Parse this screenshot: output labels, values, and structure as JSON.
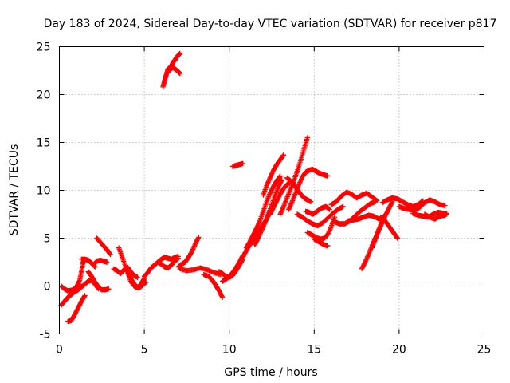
{
  "chart_data": {
    "type": "scatter",
    "title": "Day 183 of 2024, Sidereal Day-to-day VTEC variation (SDTVAR) for receiver p817",
    "xlabel": "GPS time / hours",
    "ylabel": "SDTVAR / TECUs",
    "xlim": [
      0,
      25
    ],
    "ylim": [
      -5,
      25
    ],
    "xticks": [
      0,
      5,
      10,
      15,
      20,
      25
    ],
    "yticks": [
      -5,
      0,
      5,
      10,
      15,
      20,
      25
    ],
    "grid": true,
    "marker": "plus",
    "color": "#ff0000",
    "series": [
      {
        "x": [
          0.1,
          0.3,
          0.5,
          0.7,
          0.9,
          1.1,
          1.3,
          1.5,
          1.7,
          1.9,
          2.1,
          2.3
        ],
        "y": [
          -2.0,
          -1.6,
          -1.2,
          -0.9,
          -0.6,
          -0.4,
          -0.1,
          0.2,
          0.5,
          0.6,
          0.2,
          -0.3
        ]
      },
      {
        "x": [
          0.1,
          0.3,
          0.5,
          0.8,
          1.0,
          1.2
        ],
        "y": [
          0.0,
          -0.3,
          -0.5,
          -0.4,
          -0.1,
          0.2
        ]
      },
      {
        "x": [
          0.5,
          0.7,
          0.9,
          1.1,
          1.3,
          1.5
        ],
        "y": [
          -3.7,
          -3.6,
          -3.0,
          -2.3,
          -1.6,
          -1.0
        ]
      },
      {
        "x": [
          0.6,
          0.8,
          1.0,
          1.2,
          1.3,
          1.4
        ],
        "y": [
          -1.0,
          -0.6,
          -0.1,
          0.6,
          1.5,
          2.5
        ]
      },
      {
        "x": [
          1.3,
          1.5,
          1.7,
          1.9,
          2.1
        ],
        "y": [
          2.8,
          2.8,
          2.7,
          2.4,
          2.0
        ]
      },
      {
        "x": [
          1.7,
          1.9,
          2.1,
          2.3,
          2.5,
          2.7,
          2.9
        ],
        "y": [
          1.5,
          1.0,
          0.4,
          -0.1,
          -0.4,
          -0.4,
          -0.3
        ]
      },
      {
        "x": [
          2.0,
          2.2,
          2.4,
          2.6,
          2.8
        ],
        "y": [
          2.2,
          2.6,
          2.7,
          2.6,
          2.5
        ]
      },
      {
        "x": [
          2.2,
          2.4,
          2.6,
          2.8,
          3.0
        ],
        "y": [
          5.0,
          4.6,
          4.2,
          3.8,
          3.3
        ]
      },
      {
        "x": [
          3.2,
          3.4,
          3.6,
          3.8,
          4.0,
          4.2,
          4.4,
          4.6
        ],
        "y": [
          1.8,
          1.6,
          1.3,
          1.7,
          2.0,
          1.5,
          1.1,
          0.9
        ]
      },
      {
        "x": [
          3.5,
          3.7,
          3.9,
          4.1,
          4.3,
          4.5,
          4.7,
          4.9,
          5.1
        ],
        "y": [
          4.0,
          3.0,
          2.0,
          1.2,
          0.5,
          0.0,
          -0.2,
          0.1,
          0.4
        ]
      },
      {
        "x": [
          4.0,
          4.2,
          4.4,
          4.6,
          4.8,
          5.0
        ],
        "y": [
          1.5,
          0.5,
          0.0,
          -0.2,
          0.2,
          0.8
        ]
      },
      {
        "x": [
          5.0,
          5.2,
          5.4,
          5.6,
          5.8,
          6.0,
          6.2,
          6.4,
          6.6,
          6.8,
          7.0
        ],
        "y": [
          1.0,
          1.4,
          1.9,
          2.2,
          2.5,
          2.8,
          3.0,
          2.9,
          2.8,
          3.0,
          3.1
        ]
      },
      {
        "x": [
          5.8,
          6.0,
          6.2,
          6.4,
          6.6,
          6.8,
          7.0
        ],
        "y": [
          2.5,
          2.3,
          2.0,
          1.9,
          2.2,
          2.6,
          2.9
        ]
      },
      {
        "x": [
          6.1,
          6.2,
          6.3,
          6.4,
          6.6,
          6.8,
          7.0,
          7.1
        ],
        "y": [
          20.8,
          21.5,
          22.1,
          22.7,
          22.9,
          22.7,
          22.4,
          22.2
        ]
      },
      {
        "x": [
          6.5,
          6.6,
          6.7,
          6.8,
          6.9,
          7.0,
          7.1
        ],
        "y": [
          22.5,
          23.0,
          23.4,
          23.6,
          23.9,
          24.1,
          24.3
        ]
      },
      {
        "x": [
          7.0,
          7.2,
          7.4,
          7.6,
          7.8,
          8.0,
          8.2
        ],
        "y": [
          2.0,
          2.3,
          2.5,
          3.0,
          3.6,
          4.4,
          5.1
        ]
      },
      {
        "x": [
          7.1,
          7.5,
          7.9,
          8.3,
          8.7,
          9.1,
          9.5
        ],
        "y": [
          1.8,
          1.6,
          1.7,
          1.9,
          1.7,
          1.4,
          1.2
        ]
      },
      {
        "x": [
          8.5,
          8.8,
          9.0,
          9.2,
          9.4,
          9.6
        ],
        "y": [
          1.2,
          1.0,
          0.6,
          0.1,
          -0.5,
          -1.2
        ]
      },
      {
        "x": [
          9.6,
          9.8,
          10.0,
          10.2,
          10.4,
          10.6,
          10.8
        ],
        "y": [
          0.5,
          0.7,
          1.0,
          1.4,
          1.9,
          2.5,
          3.2
        ]
      },
      {
        "x": [
          9.4,
          9.6,
          9.8,
          10.0,
          10.2,
          10.4,
          10.6,
          10.8
        ],
        "y": [
          1.5,
          1.3,
          1.0,
          0.9,
          1.1,
          1.6,
          2.2,
          2.8
        ]
      },
      {
        "x": [
          10.2,
          10.4,
          10.6,
          10.8
        ],
        "y": [
          12.5,
          12.6,
          12.7,
          12.8
        ]
      },
      {
        "x": [
          10.8,
          11.0,
          11.2,
          11.4,
          11.6,
          11.8,
          12.0,
          12.2,
          12.4
        ],
        "y": [
          3.0,
          3.7,
          4.3,
          4.8,
          5.3,
          5.8,
          6.4,
          7.0,
          7.8
        ]
      },
      {
        "x": [
          11.0,
          11.2,
          11.4,
          11.6,
          11.8,
          12.0,
          12.2,
          12.4,
          12.6,
          12.8,
          13.0
        ],
        "y": [
          4.0,
          4.6,
          5.3,
          6.0,
          6.8,
          7.8,
          8.8,
          9.7,
          10.4,
          11.0,
          11.5
        ]
      },
      {
        "x": [
          11.5,
          11.7,
          11.9,
          12.1,
          12.3,
          12.5,
          12.7,
          12.9,
          13.1
        ],
        "y": [
          4.3,
          5.0,
          5.8,
          6.6,
          7.5,
          8.5,
          9.5,
          10.4,
          11.1
        ]
      },
      {
        "x": [
          12.0,
          12.2,
          12.4,
          12.6,
          12.8,
          13.0,
          13.2
        ],
        "y": [
          9.5,
          10.5,
          11.3,
          12.1,
          12.7,
          13.2,
          13.7
        ]
      },
      {
        "x": [
          12.4,
          12.6,
          12.8,
          13.0,
          13.2,
          13.4,
          13.6,
          13.8
        ],
        "y": [
          7.5,
          8.2,
          8.9,
          9.6,
          10.2,
          10.6,
          10.9,
          10.8
        ]
      },
      {
        "x": [
          13.0,
          13.2,
          13.4,
          13.6,
          13.8,
          14.0,
          14.2,
          14.4,
          14.6
        ],
        "y": [
          7.5,
          8.3,
          9.2,
          10.1,
          11.0,
          12.0,
          13.1,
          14.3,
          15.5
        ]
      },
      {
        "x": [
          13.4,
          13.6,
          13.8,
          14.0,
          14.2,
          14.4,
          14.6,
          14.8
        ],
        "y": [
          11.3,
          11.0,
          10.6,
          10.1,
          9.6,
          9.2,
          9.0,
          8.8
        ]
      },
      {
        "x": [
          13.5,
          13.7,
          13.9,
          14.1,
          14.3,
          14.5,
          14.7,
          14.9,
          15.1,
          15.3,
          15.6,
          15.8
        ],
        "y": [
          8.0,
          8.8,
          9.7,
          10.6,
          11.4,
          11.9,
          12.1,
          12.2,
          12.0,
          11.8,
          11.6,
          11.5
        ]
      },
      {
        "x": [
          14.0,
          14.3,
          14.6,
          14.9,
          15.2,
          15.5,
          15.8,
          16.1,
          16.4,
          16.7
        ],
        "y": [
          7.5,
          7.2,
          6.8,
          6.5,
          6.3,
          6.6,
          7.1,
          7.6,
          8.0,
          8.3
        ]
      },
      {
        "x": [
          14.5,
          14.7,
          14.9,
          15.1,
          15.3,
          15.5,
          15.7,
          15.9
        ],
        "y": [
          7.8,
          7.7,
          7.5,
          7.7,
          8.0,
          8.2,
          8.3,
          8.0
        ]
      },
      {
        "x": [
          14.6,
          14.8,
          15.0,
          15.2,
          15.4,
          15.6,
          15.8,
          16.0,
          16.2
        ],
        "y": [
          5.6,
          5.4,
          5.2,
          5.0,
          4.9,
          5.0,
          5.4,
          6.2,
          7.2
        ]
      },
      {
        "x": [
          15.0,
          15.2,
          15.4,
          15.6,
          15.8
        ],
        "y": [
          4.9,
          4.7,
          4.5,
          4.3,
          4.2
        ]
      },
      {
        "x": [
          16.0,
          16.3,
          16.6,
          16.9,
          17.2,
          17.5,
          17.8,
          18.1,
          18.4,
          18.7
        ],
        "y": [
          8.5,
          8.8,
          9.4,
          9.8,
          9.6,
          9.2,
          9.5,
          9.7,
          9.3,
          8.9
        ]
      },
      {
        "x": [
          16.2,
          16.5,
          16.8,
          17.1,
          17.4,
          17.7,
          18.0,
          18.3,
          18.6
        ],
        "y": [
          6.7,
          6.5,
          6.5,
          6.8,
          7.3,
          7.8,
          8.2,
          8.6,
          8.8
        ]
      },
      {
        "x": [
          17.0,
          17.3,
          17.6,
          17.9,
          18.2,
          18.5,
          18.8,
          19.1
        ],
        "y": [
          6.8,
          6.9,
          7.0,
          7.2,
          7.4,
          7.3,
          7.0,
          7.1
        ]
      },
      {
        "x": [
          17.8,
          18.0,
          18.2,
          18.4,
          18.6,
          18.8,
          19.0,
          19.2,
          19.4,
          19.6
        ],
        "y": [
          1.8,
          2.5,
          3.3,
          4.2,
          5.0,
          5.8,
          6.6,
          7.4,
          8.1,
          8.8
        ]
      },
      {
        "x": [
          18.4,
          18.6,
          18.8,
          19.0,
          19.2
        ],
        "y": [
          4.0,
          4.9,
          5.9,
          6.8,
          7.5
        ]
      },
      {
        "x": [
          18.9,
          19.1,
          19.3,
          19.5,
          19.7,
          19.9
        ],
        "y": [
          7.2,
          7.0,
          6.5,
          6.0,
          5.5,
          5.0
        ]
      },
      {
        "x": [
          19.0,
          19.3,
          19.6,
          19.9,
          20.2,
          20.5,
          20.8,
          21.1,
          21.4
        ],
        "y": [
          8.7,
          9.0,
          9.2,
          9.1,
          8.8,
          8.5,
          8.3,
          8.5,
          8.9
        ]
      },
      {
        "x": [
          20.0,
          20.3,
          20.6,
          20.9,
          21.2,
          21.5,
          21.8,
          22.1,
          22.4,
          22.7
        ],
        "y": [
          8.3,
          8.1,
          8.0,
          7.9,
          8.2,
          8.7,
          9.0,
          8.8,
          8.5,
          8.4
        ]
      },
      {
        "x": [
          20.8,
          21.1,
          21.4,
          21.7,
          22.0,
          22.3,
          22.6,
          22.8
        ],
        "y": [
          7.6,
          7.4,
          7.3,
          7.2,
          7.5,
          7.7,
          7.6,
          7.5
        ]
      },
      {
        "x": [
          21.5,
          21.8,
          22.1,
          22.4,
          22.7,
          22.8
        ],
        "y": [
          7.5,
          7.2,
          7.0,
          7.3,
          7.4,
          7.6
        ]
      }
    ]
  }
}
